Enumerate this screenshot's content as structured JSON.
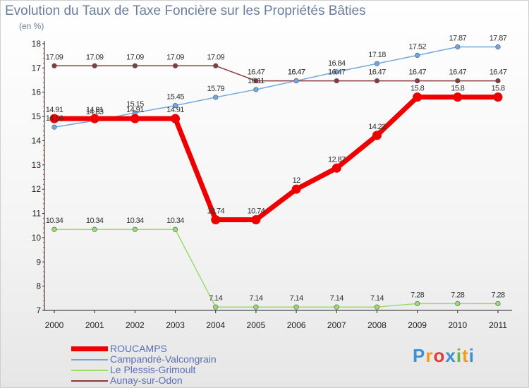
{
  "chart_data": {
    "type": "line",
    "title": "Evolution du Taux de Taxe Foncière sur les Propriétés Bâties",
    "ylabel": "(en %)",
    "xlabel": "",
    "ylim": [
      7,
      18
    ],
    "yticks": [
      "7",
      "8",
      "9",
      "10",
      "11",
      "12",
      "13",
      "14",
      "15",
      "16",
      "17",
      "18"
    ],
    "categories": [
      "2000",
      "2001",
      "2002",
      "2003",
      "2004",
      "2005",
      "2006",
      "2007",
      "2008",
      "2009",
      "2010",
      "2011"
    ],
    "series": [
      {
        "name": "ROUCAMPS",
        "color": "#ee0000",
        "values": [
          14.91,
          14.91,
          14.91,
          14.91,
          10.74,
          10.74,
          12,
          12.87,
          14.22,
          15.8,
          15.8,
          15.8
        ],
        "labels": [
          "14.91",
          "14.91",
          "14.91",
          "14.91",
          "10.74",
          "10.74",
          "12",
          "12.87",
          "14.22",
          "15.8",
          "15.8",
          "15.8"
        ]
      },
      {
        "name": "Campandré-Valcongrain",
        "color": "#6fa8dc",
        "values": [
          14.56,
          14.83,
          15.15,
          15.45,
          15.79,
          16.11,
          16.47,
          16.84,
          17.18,
          17.52,
          17.87,
          17.87
        ],
        "labels": [
          "14.56",
          "14.83",
          "15.15",
          "15.45",
          "15.79",
          "16.11",
          "16.47",
          "16.84",
          "17.18",
          "17.52",
          "17.87",
          "17.87"
        ]
      },
      {
        "name": "Le Plessis-Grimoult",
        "color": "#99dd66",
        "values": [
          10.34,
          10.34,
          10.34,
          10.34,
          7.14,
          7.14,
          7.14,
          7.14,
          7.14,
          7.28,
          7.28,
          7.28
        ],
        "labels": [
          "10.34",
          "10.34",
          "10.34",
          "10.34",
          "7.14",
          "7.14",
          "7.14",
          "7.14",
          "7.14",
          "7.28",
          "7.28",
          "7.28"
        ]
      },
      {
        "name": "Aunay-sur-Odon",
        "color": "#8b3a3a",
        "values": [
          17.09,
          17.09,
          17.09,
          17.09,
          17.09,
          16.47,
          16.47,
          16.47,
          16.47,
          16.47,
          16.47,
          16.47
        ],
        "labels": [
          "17.09",
          "17.09",
          "17.09",
          "17.09",
          "17.09",
          "16.47",
          "16.47",
          "16.47",
          "16.47",
          "16.47",
          "16.47",
          "16.47"
        ]
      }
    ],
    "legend_position": "bottom-left",
    "grid": false
  },
  "logo": {
    "text": "Proxiti",
    "letters": [
      "P",
      "r",
      "o",
      "x",
      "i",
      "t",
      "i"
    ],
    "colors": [
      "#3d8fd6",
      "#f29a1f",
      "#e03b3b",
      "#3d8fd6",
      "#66bb33",
      "#f29a1f",
      "#3d8fd6"
    ]
  }
}
